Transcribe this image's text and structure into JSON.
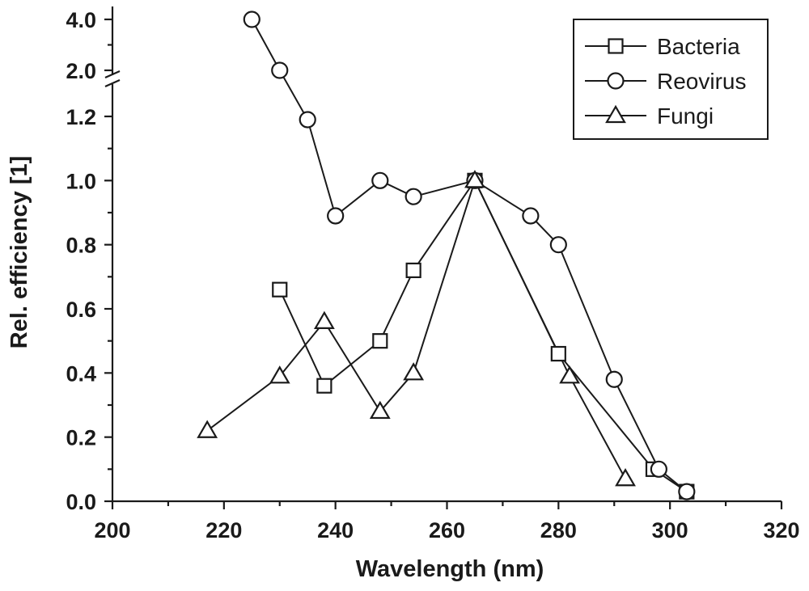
{
  "chart_data": {
    "type": "line",
    "title": "",
    "xlabel": "Wavelength (nm)",
    "ylabel": "Rel. efficiency [1]",
    "xlim": [
      200,
      320
    ],
    "x_ticks": [
      "200",
      "220",
      "240",
      "260",
      "280",
      "300",
      "320"
    ],
    "y_ticks": [
      "0.0",
      "0.2",
      "0.4",
      "0.6",
      "0.8",
      "1.0",
      "1.2"
    ],
    "y_break_ticks": [
      "2.0",
      "4.0"
    ],
    "y_axis_break": true,
    "grid": false,
    "legend_position": "top-right",
    "series": [
      {
        "name": "Bacteria",
        "marker": "square",
        "x": [
          230,
          238,
          248,
          254,
          265,
          280,
          297,
          303
        ],
        "y": [
          0.66,
          0.36,
          0.5,
          0.72,
          1.0,
          0.46,
          0.1,
          0.03
        ]
      },
      {
        "name": "Reovirus",
        "marker": "circle",
        "x": [
          225,
          230,
          235,
          240,
          248,
          254,
          265,
          275,
          280,
          290,
          298,
          303
        ],
        "y": [
          4.0,
          2.0,
          1.19,
          0.89,
          1.0,
          0.95,
          1.0,
          0.89,
          0.8,
          0.38,
          0.1,
          0.03
        ]
      },
      {
        "name": "Fungi",
        "marker": "triangle",
        "x": [
          217,
          230,
          238,
          248,
          254,
          265,
          282,
          292
        ],
        "y": [
          0.22,
          0.39,
          0.56,
          0.28,
          0.4,
          1.0,
          0.39,
          0.07
        ]
      }
    ]
  }
}
